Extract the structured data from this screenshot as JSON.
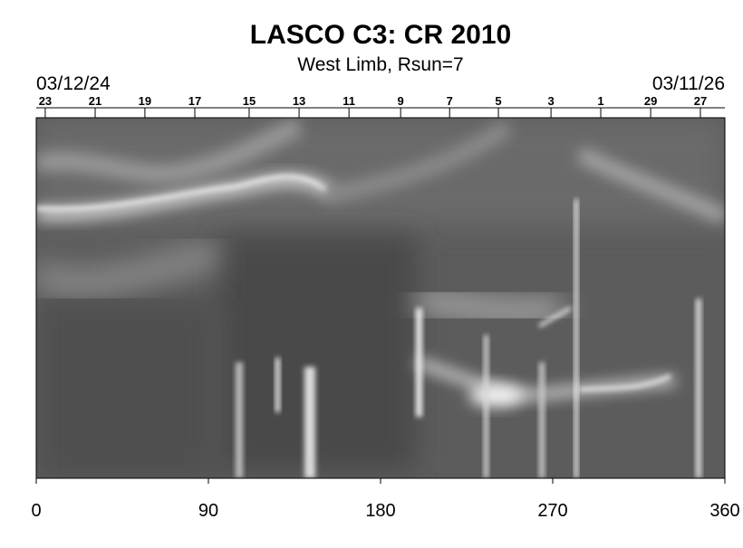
{
  "chart_data": {
    "type": "image",
    "title": "LASCO C3: CR 2010",
    "subtitle": "West Limb, Rsun=7",
    "start_date": "03/12/24",
    "end_date": "03/11/26",
    "xlim": [
      0,
      360
    ],
    "xticks": [
      0,
      90,
      180,
      270,
      360
    ],
    "top_ticks": [
      {
        "value": 4.7,
        "label": "23"
      },
      {
        "value": 30.8,
        "label": "21"
      },
      {
        "value": 56.8,
        "label": "19"
      },
      {
        "value": 82.9,
        "label": "17"
      },
      {
        "value": 111.3,
        "label": "15"
      },
      {
        "value": 137.4,
        "label": "13"
      },
      {
        "value": 163.5,
        "label": "11"
      },
      {
        "value": 190.5,
        "label": "9"
      },
      {
        "value": 216.1,
        "label": "7"
      },
      {
        "value": 241.6,
        "label": "5"
      },
      {
        "value": 269.1,
        "label": "3"
      },
      {
        "value": 295.1,
        "label": "1"
      },
      {
        "value": 321.2,
        "label": "29"
      },
      {
        "value": 347.2,
        "label": "27"
      }
    ]
  }
}
